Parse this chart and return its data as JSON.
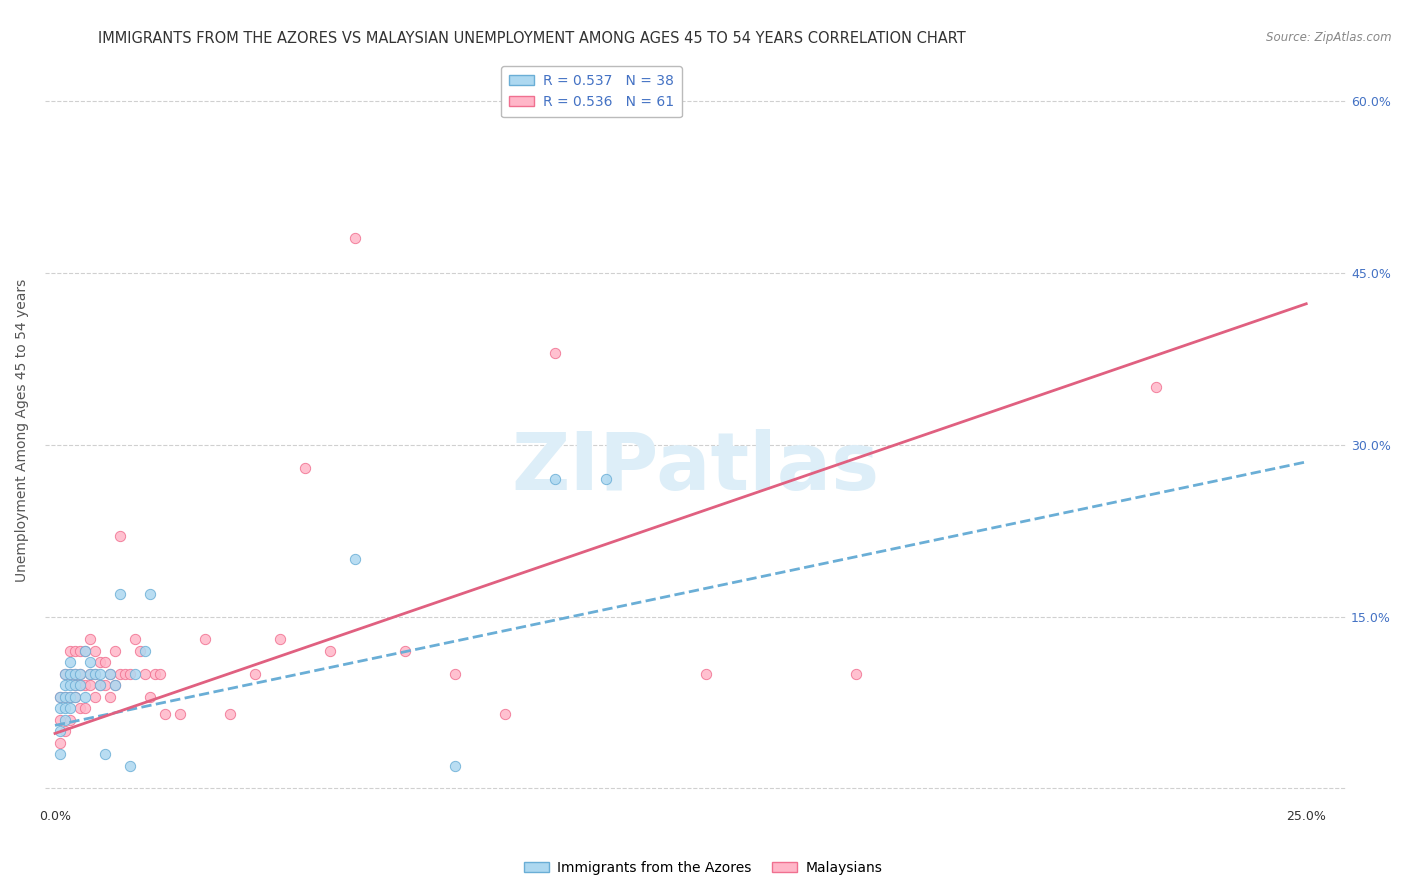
{
  "title": "IMMIGRANTS FROM THE AZORES VS MALAYSIAN UNEMPLOYMENT AMONG AGES 45 TO 54 YEARS CORRELATION CHART",
  "source": "Source: ZipAtlas.com",
  "ylabel_left": "Unemployment Among Ages 45 to 54 years",
  "ylabel_ticks": [
    0.0,
    0.15,
    0.3,
    0.45,
    0.6
  ],
  "ylabel_labels": [
    "",
    "15.0%",
    "30.0%",
    "45.0%",
    "60.0%"
  ],
  "xlim": [
    -0.002,
    0.258
  ],
  "ylim": [
    -0.015,
    0.64
  ],
  "series1_label": "Immigrants from the Azores",
  "series1_R": "0.537",
  "series1_N": "38",
  "series1_color": "#add8f0",
  "series1_edge": "#6aaed6",
  "series2_label": "Malaysians",
  "series2_R": "0.536",
  "series2_N": "61",
  "series2_color": "#ffb6c8",
  "series2_edge": "#f07090",
  "watermark_color": "#ddeef8",
  "background_color": "#ffffff",
  "grid_color": "#d0d0d0",
  "trend1_color": "#6aaed6",
  "trend2_color": "#e06080",
  "series1_x": [
    0.001,
    0.001,
    0.001,
    0.001,
    0.002,
    0.002,
    0.002,
    0.002,
    0.002,
    0.003,
    0.003,
    0.003,
    0.003,
    0.003,
    0.004,
    0.004,
    0.004,
    0.005,
    0.005,
    0.006,
    0.006,
    0.007,
    0.007,
    0.008,
    0.009,
    0.009,
    0.01,
    0.011,
    0.012,
    0.013,
    0.015,
    0.016,
    0.018,
    0.019,
    0.06,
    0.08,
    0.1,
    0.11
  ],
  "series1_y": [
    0.03,
    0.05,
    0.07,
    0.08,
    0.06,
    0.07,
    0.08,
    0.09,
    0.1,
    0.07,
    0.08,
    0.09,
    0.1,
    0.11,
    0.08,
    0.09,
    0.1,
    0.09,
    0.1,
    0.08,
    0.12,
    0.1,
    0.11,
    0.1,
    0.09,
    0.1,
    0.03,
    0.1,
    0.09,
    0.17,
    0.02,
    0.1,
    0.12,
    0.17,
    0.2,
    0.02,
    0.27,
    0.27
  ],
  "series2_x": [
    0.001,
    0.001,
    0.001,
    0.002,
    0.002,
    0.002,
    0.003,
    0.003,
    0.003,
    0.003,
    0.004,
    0.004,
    0.004,
    0.004,
    0.005,
    0.005,
    0.005,
    0.005,
    0.006,
    0.006,
    0.006,
    0.007,
    0.007,
    0.007,
    0.008,
    0.008,
    0.008,
    0.009,
    0.009,
    0.01,
    0.01,
    0.011,
    0.011,
    0.012,
    0.012,
    0.013,
    0.013,
    0.014,
    0.015,
    0.016,
    0.017,
    0.018,
    0.019,
    0.02,
    0.021,
    0.022,
    0.025,
    0.03,
    0.035,
    0.04,
    0.045,
    0.05,
    0.055,
    0.06,
    0.07,
    0.08,
    0.09,
    0.1,
    0.13,
    0.16,
    0.22
  ],
  "series2_y": [
    0.04,
    0.06,
    0.08,
    0.05,
    0.08,
    0.1,
    0.06,
    0.08,
    0.1,
    0.12,
    0.08,
    0.09,
    0.1,
    0.12,
    0.07,
    0.09,
    0.1,
    0.12,
    0.07,
    0.09,
    0.12,
    0.09,
    0.1,
    0.13,
    0.08,
    0.1,
    0.12,
    0.09,
    0.11,
    0.09,
    0.11,
    0.08,
    0.1,
    0.09,
    0.12,
    0.1,
    0.22,
    0.1,
    0.1,
    0.13,
    0.12,
    0.1,
    0.08,
    0.1,
    0.1,
    0.065,
    0.065,
    0.13,
    0.065,
    0.1,
    0.13,
    0.28,
    0.12,
    0.48,
    0.12,
    0.1,
    0.065,
    0.38,
    0.1,
    0.1,
    0.35
  ],
  "trend1_intercept": 0.055,
  "trend1_slope": 0.92,
  "trend2_intercept": 0.048,
  "trend2_slope": 1.5,
  "title_fontsize": 10.5,
  "axis_label_fontsize": 10,
  "tick_fontsize": 9,
  "legend_fontsize": 10,
  "marker_size": 55
}
